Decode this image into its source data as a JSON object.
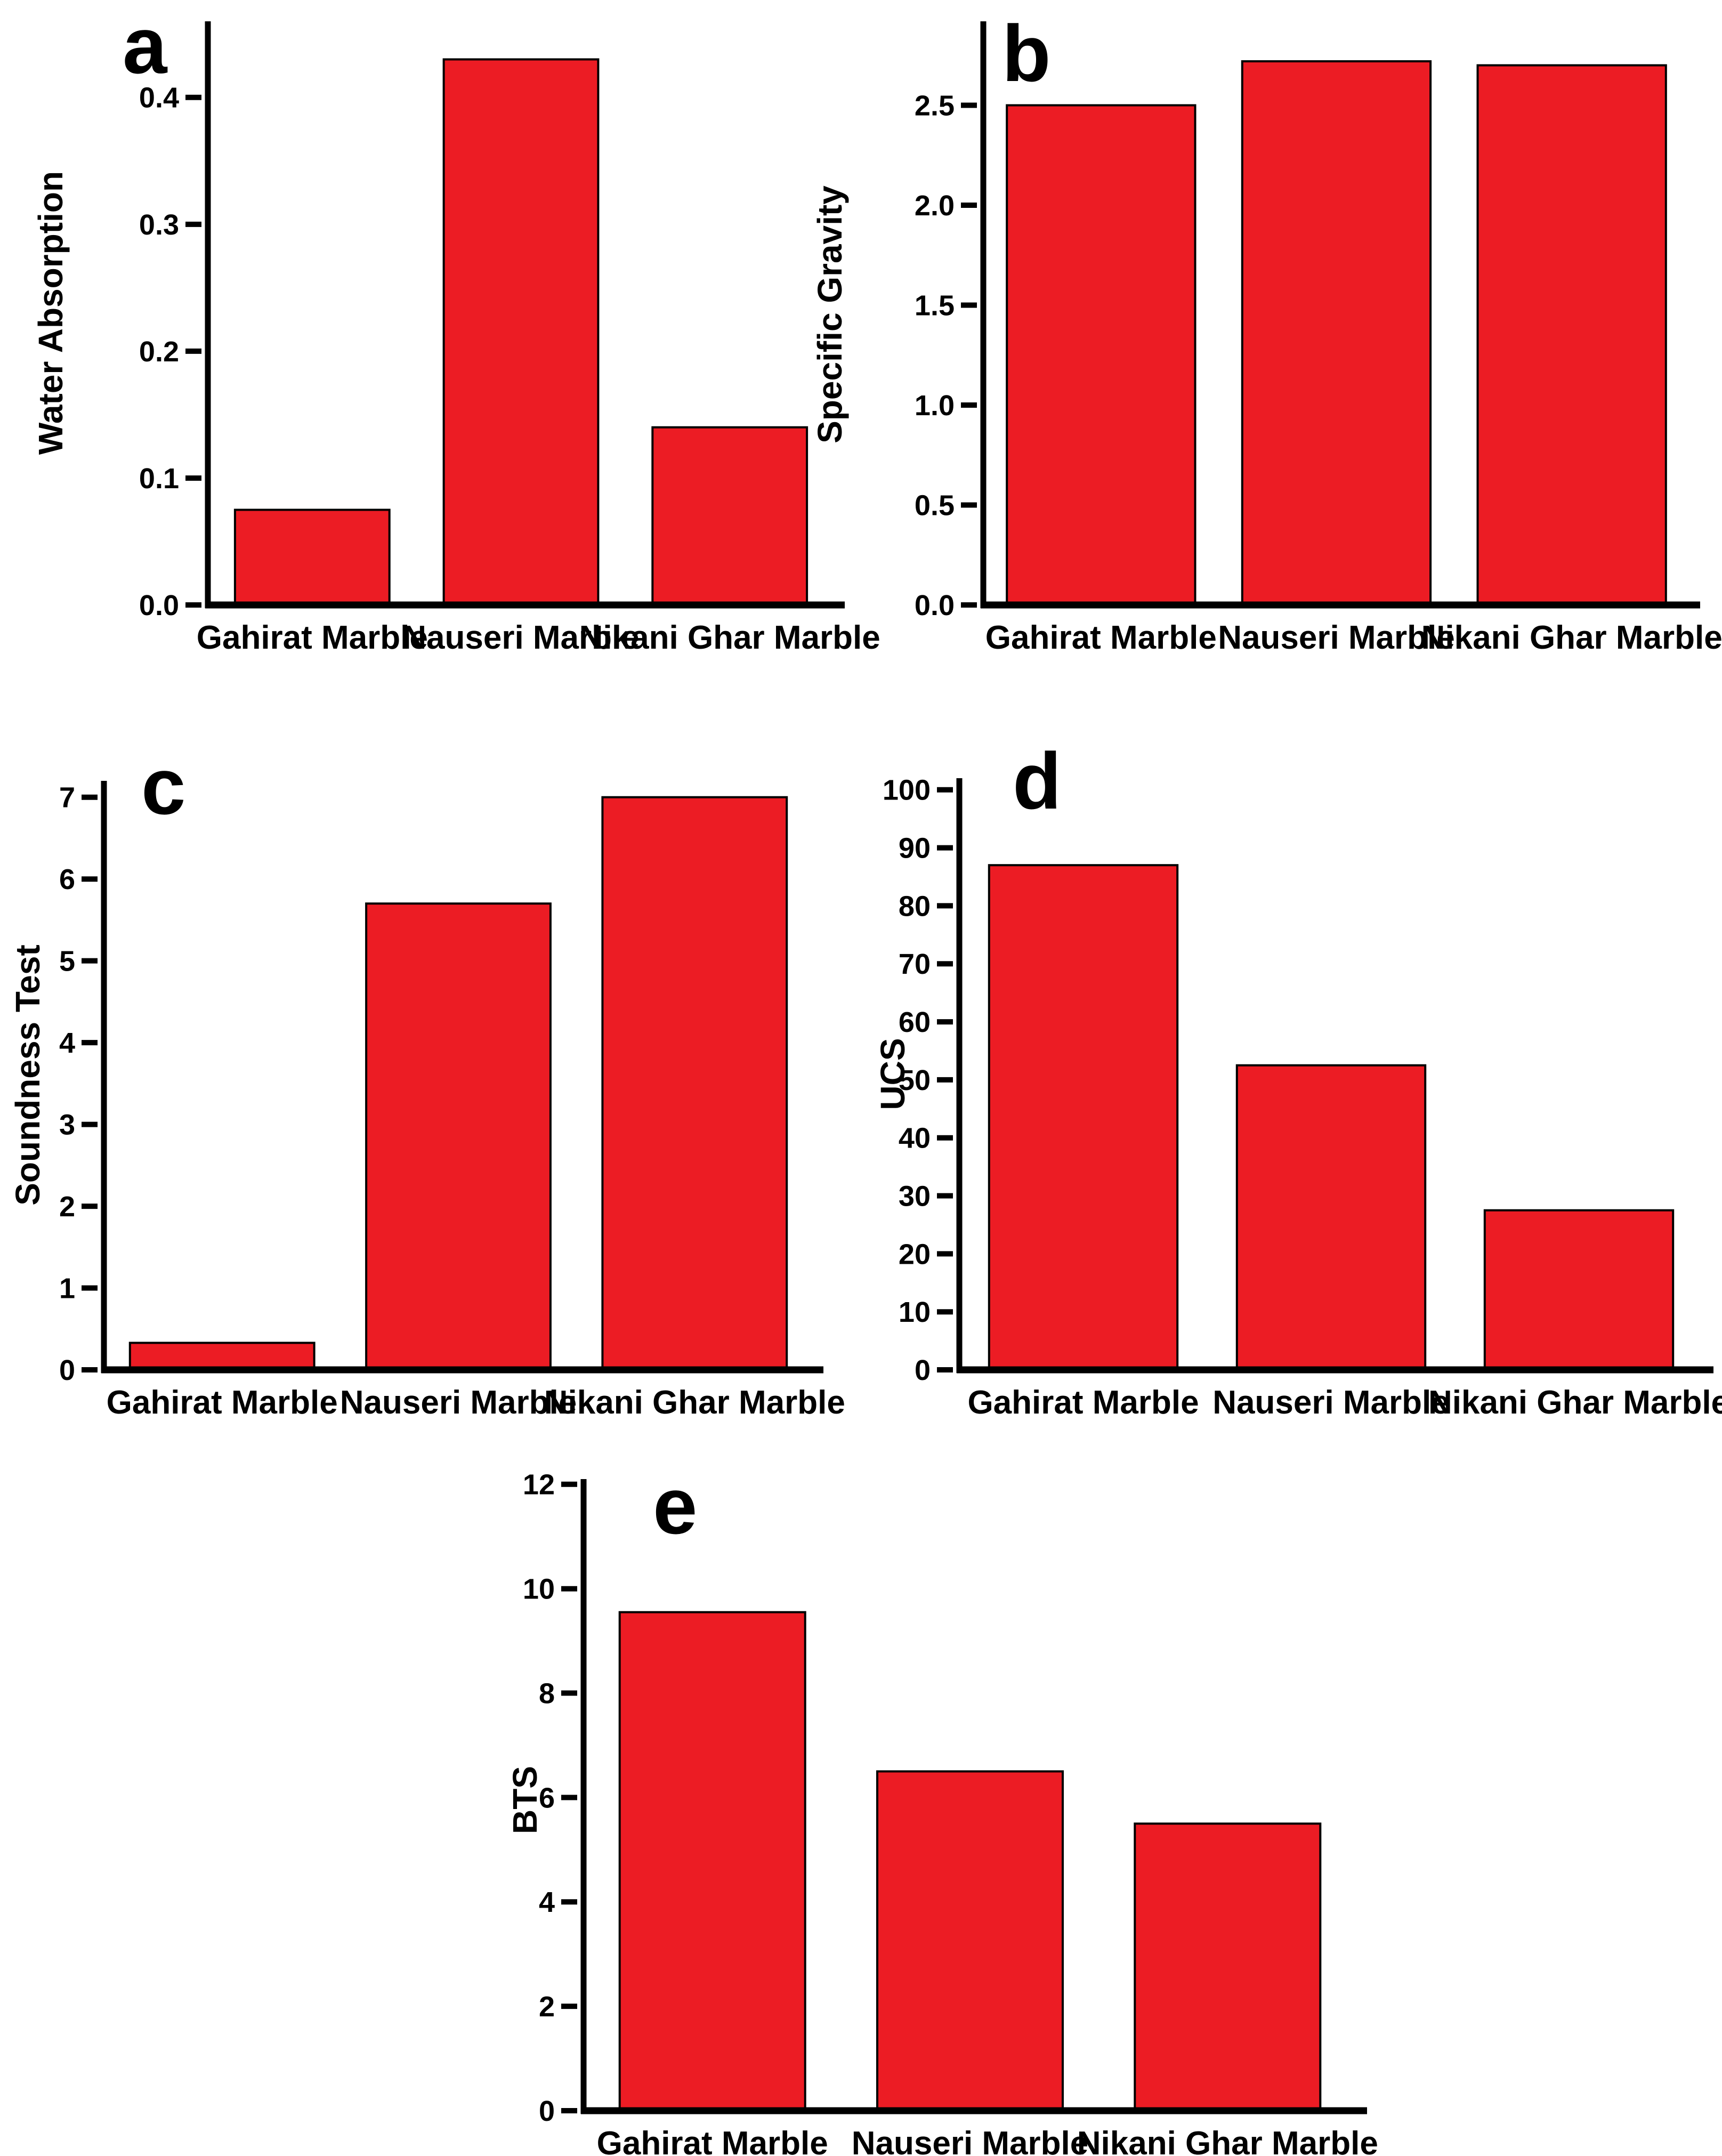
{
  "figure": {
    "background": "#FFFFFF",
    "bar_color": "#EC1C24",
    "bar_border_color": "#000000",
    "axis_color": "#000000",
    "text_color": "#000000"
  },
  "chart_data": [
    {
      "type": "bar",
      "panel_label": "a",
      "ylabel": "Water Absorption",
      "xlabel": "",
      "categories": [
        "Gahirat Marble",
        "Nauseri Marble",
        "Nikani Ghar Marble"
      ],
      "values": [
        0.075,
        0.43,
        0.14
      ],
      "yticks": [
        0.0,
        0.1,
        0.2,
        0.3,
        0.4
      ],
      "ytick_labels": [
        "0.0",
        "0.1",
        "0.2",
        "0.3",
        "0.4"
      ],
      "ylim": [
        0,
        0.46
      ],
      "grid": false,
      "legend": "none",
      "bar_color": "#EC1C24"
    },
    {
      "type": "bar",
      "panel_label": "b",
      "ylabel": "Specific Gravity",
      "xlabel": "",
      "categories": [
        "Gahirat Marble",
        "Nauseri Marble",
        "Nikani Ghar Marble"
      ],
      "values": [
        2.5,
        2.72,
        2.7
      ],
      "yticks": [
        0.0,
        0.5,
        1.0,
        1.5,
        2.0,
        2.5
      ],
      "ytick_labels": [
        "0.0",
        "0.5",
        "1.0",
        "1.5",
        "2.0",
        "2.5"
      ],
      "ylim": [
        0,
        2.92
      ],
      "grid": false,
      "legend": "none",
      "bar_color": "#EC1C24"
    },
    {
      "type": "bar",
      "panel_label": "c",
      "ylabel": "Soundness Test",
      "xlabel": "",
      "categories": [
        "Gahirat Marble",
        "Nauseri Marble",
        "Nikani Ghar Marble"
      ],
      "values": [
        0.33,
        5.7,
        7.0
      ],
      "yticks": [
        0,
        1,
        2,
        3,
        4,
        5,
        6,
        7
      ],
      "ytick_labels": [
        "0",
        "1",
        "2",
        "3",
        "4",
        "5",
        "6",
        "7"
      ],
      "ylim": [
        0,
        7.2
      ],
      "grid": false,
      "legend": "none",
      "bar_color": "#EC1C24"
    },
    {
      "type": "bar",
      "panel_label": "d",
      "ylabel": "UCS",
      "xlabel": "",
      "categories": [
        "Gahirat Marble",
        "Nauseri Marble",
        "Nikani Ghar Marble"
      ],
      "values": [
        87,
        52.5,
        27.5
      ],
      "yticks": [
        0,
        10,
        20,
        30,
        40,
        50,
        60,
        70,
        80,
        90,
        100
      ],
      "ytick_labels": [
        "0",
        "10",
        "20",
        "30",
        "40",
        "50",
        "60",
        "70",
        "80",
        "90",
        "100"
      ],
      "ylim": [
        0,
        102
      ],
      "grid": false,
      "legend": "none",
      "bar_color": "#EC1C24"
    },
    {
      "type": "bar",
      "panel_label": "e",
      "ylabel": "BTS",
      "xlabel": "",
      "categories": [
        "Gahirat Marble",
        "Nauseri Marble",
        "Nikani Ghar Marble"
      ],
      "values": [
        9.55,
        6.5,
        5.5
      ],
      "yticks": [
        0,
        2,
        4,
        6,
        8,
        10,
        12
      ],
      "ytick_labels": [
        "0",
        "2",
        "4",
        "6",
        "8",
        "10",
        "12"
      ],
      "ylim": [
        0,
        12.1
      ],
      "grid": false,
      "legend": "none",
      "bar_color": "#EC1C24"
    }
  ]
}
